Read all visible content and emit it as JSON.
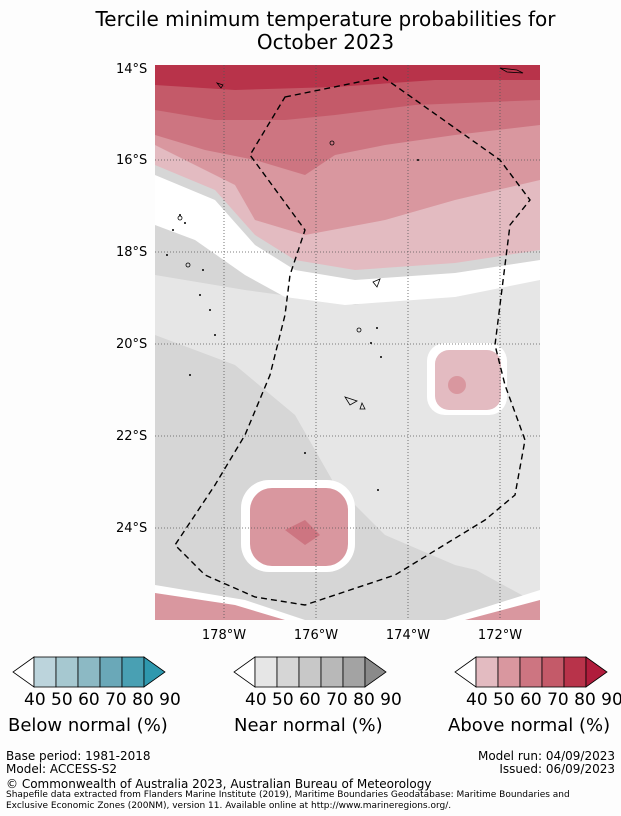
{
  "title_line1": "Tercile minimum temperature probabilities for",
  "title_line2": "October 2023",
  "lat_labels": [
    "14°S",
    "16°S",
    "18°S",
    "20°S",
    "22°S",
    "24°S"
  ],
  "lon_labels": [
    "178°W",
    "176°W",
    "174°W",
    "172°W"
  ],
  "colorbars": [
    {
      "label": "Below normal (%)",
      "ticks": "40 50 60 70 80 90",
      "colors": [
        "#bcd4dc",
        "#a6c8d0",
        "#8cb9c4",
        "#6aa8b8",
        "#49a0b3",
        "#2e98ae"
      ]
    },
    {
      "label": "Near normal (%)",
      "ticks": "40 50 60 70 80 90",
      "colors": [
        "#e6e6e6",
        "#d6d6d6",
        "#c8c8c8",
        "#b8b8b8",
        "#a3a3a3",
        "#8a8a8a"
      ]
    },
    {
      "label": "Above normal (%)",
      "ticks": "40 50 60 70 80 90",
      "colors": [
        "#e3bbc1",
        "#d9979f",
        "#cd7581",
        "#c45a69",
        "#b8334a",
        "#b01c3c"
      ]
    }
  ],
  "footer": {
    "base_period": "Base period: 1981-2018",
    "model": "Model: ACCESS-S2",
    "model_run": "Model run: 04/09/2023",
    "issued": "Issued: 06/09/2023",
    "copyright": "© Commonwealth of Australia 2023, Australian Bureau of Meteorology",
    "shapefile": "Shapefile data extracted from Flanders Marine Institute (2019), Maritime Boundaries Geodatabase: Maritime Boundaries and Exclusive Economic Zones (200NM), version 11. Available online at http://www.marineregions.org/."
  }
}
